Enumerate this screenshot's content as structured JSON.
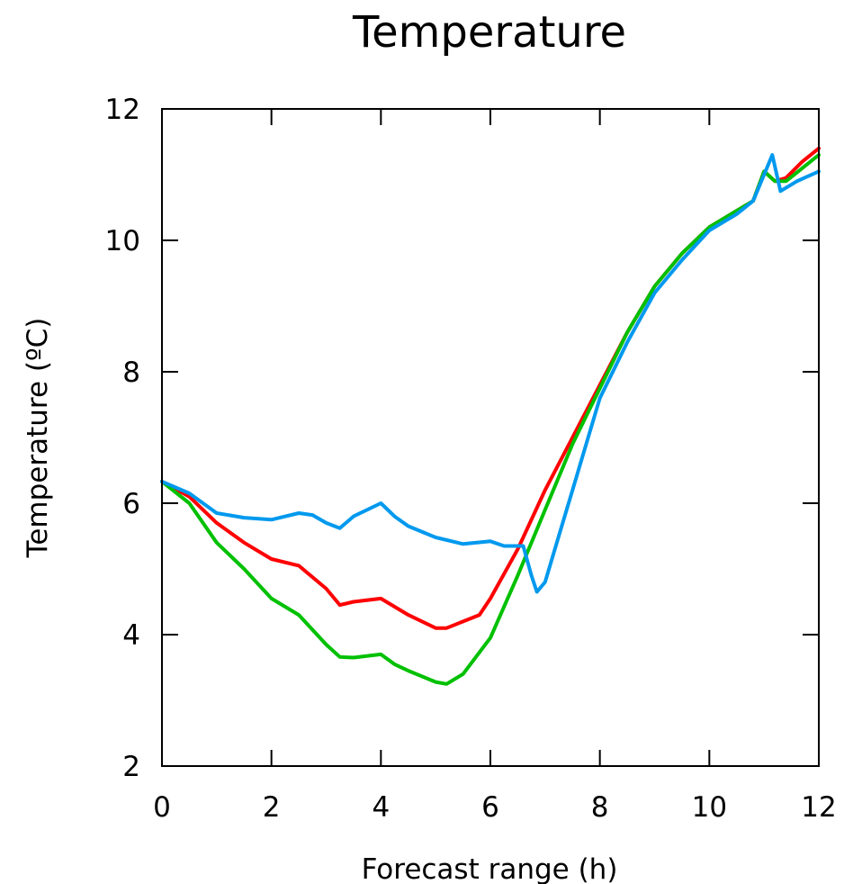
{
  "chart_data": {
    "type": "line",
    "title": "Temperature",
    "xlabel": "Forecast range (h)",
    "ylabel": "Temperature (ºC)",
    "xlim": [
      0,
      12
    ],
    "ylim": [
      2,
      12
    ],
    "xticks": [
      "0",
      "2",
      "4",
      "6",
      "8",
      "10",
      "12"
    ],
    "yticks": [
      "2",
      "4",
      "6",
      "8",
      "10",
      "12"
    ],
    "grid": false,
    "series": [
      {
        "color": "#ff0000",
        "x": [
          0,
          0.5,
          1,
          1.5,
          2,
          2.5,
          3,
          3.25,
          3.5,
          4,
          4.5,
          5,
          5.2,
          5.5,
          5.8,
          6,
          6.5,
          7,
          7.5,
          8,
          8.5,
          9,
          9.5,
          10,
          10.5,
          10.8,
          11,
          11.2,
          11.4,
          11.7,
          12
        ],
        "y": [
          6.33,
          6.1,
          5.7,
          5.4,
          5.15,
          5.05,
          4.7,
          4.45,
          4.5,
          4.55,
          4.3,
          4.1,
          4.1,
          4.2,
          4.3,
          4.55,
          5.3,
          6.2,
          7.0,
          7.8,
          8.6,
          9.3,
          9.8,
          10.2,
          10.45,
          10.6,
          11.05,
          10.9,
          10.95,
          11.2,
          11.4
        ]
      },
      {
        "color": "#00c000",
        "x": [
          0,
          0.5,
          1,
          1.5,
          2,
          2.5,
          3,
          3.25,
          3.5,
          4,
          4.25,
          4.5,
          5,
          5.2,
          5.5,
          6,
          6.5,
          7,
          7.5,
          8,
          8.5,
          9,
          9.5,
          10,
          10.5,
          10.8,
          11,
          11.2,
          11.4,
          11.7,
          12
        ],
        "y": [
          6.33,
          6.0,
          5.4,
          5.0,
          4.55,
          4.3,
          3.85,
          3.66,
          3.65,
          3.7,
          3.55,
          3.45,
          3.28,
          3.25,
          3.4,
          3.95,
          4.9,
          5.9,
          6.9,
          7.75,
          8.6,
          9.3,
          9.8,
          10.2,
          10.45,
          10.6,
          11.05,
          10.9,
          10.9,
          11.1,
          11.3
        ]
      },
      {
        "color": "#0099ee",
        "x": [
          0,
          0.5,
          1,
          1.5,
          2,
          2.5,
          2.75,
          3,
          3.25,
          3.5,
          4,
          4.25,
          4.5,
          5,
          5.5,
          6,
          6.25,
          6.6,
          6.75,
          6.85,
          7,
          7.25,
          7.5,
          8,
          8.5,
          9,
          9.5,
          10,
          10.5,
          10.8,
          11,
          11.15,
          11.3,
          11.6,
          12
        ],
        "y": [
          6.33,
          6.15,
          5.85,
          5.78,
          5.75,
          5.85,
          5.82,
          5.7,
          5.62,
          5.8,
          6.0,
          5.8,
          5.65,
          5.48,
          5.38,
          5.42,
          5.35,
          5.35,
          4.9,
          4.65,
          4.8,
          5.5,
          6.2,
          7.6,
          8.45,
          9.2,
          9.7,
          10.15,
          10.4,
          10.6,
          11.0,
          11.3,
          10.75,
          10.9,
          11.05
        ]
      }
    ]
  }
}
